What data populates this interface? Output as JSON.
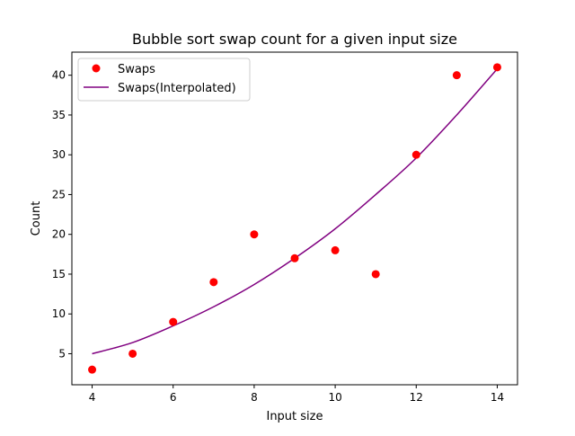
{
  "chart_data": {
    "type": "scatter",
    "title": "Bubble sort swap count for a given input size",
    "xlabel": "Input size",
    "ylabel": "Count",
    "xlim": [
      3.5,
      14.5
    ],
    "ylim": [
      1.1,
      42.9
    ],
    "xticks": [
      4,
      6,
      8,
      10,
      12,
      14
    ],
    "yticks": [
      5,
      10,
      15,
      20,
      25,
      30,
      35,
      40
    ],
    "grid": false,
    "legend_position": "top-left",
    "series": [
      {
        "name": "Swaps",
        "kind": "scatter",
        "color": "#ff0000",
        "x": [
          4,
          5,
          6,
          7,
          8,
          9,
          10,
          11,
          12,
          13,
          14
        ],
        "y": [
          3,
          5,
          9,
          14,
          20,
          17,
          18,
          15,
          30,
          40,
          41
        ]
      },
      {
        "name": "Swaps(Interpolated)",
        "kind": "line",
        "color": "#800080",
        "x": [
          4,
          5,
          6,
          7,
          8,
          9,
          10,
          11,
          12,
          13,
          14
        ],
        "y": [
          5.0,
          6.4,
          8.5,
          10.9,
          13.7,
          17.0,
          20.7,
          25.0,
          29.6,
          35.0,
          40.8
        ]
      }
    ]
  }
}
